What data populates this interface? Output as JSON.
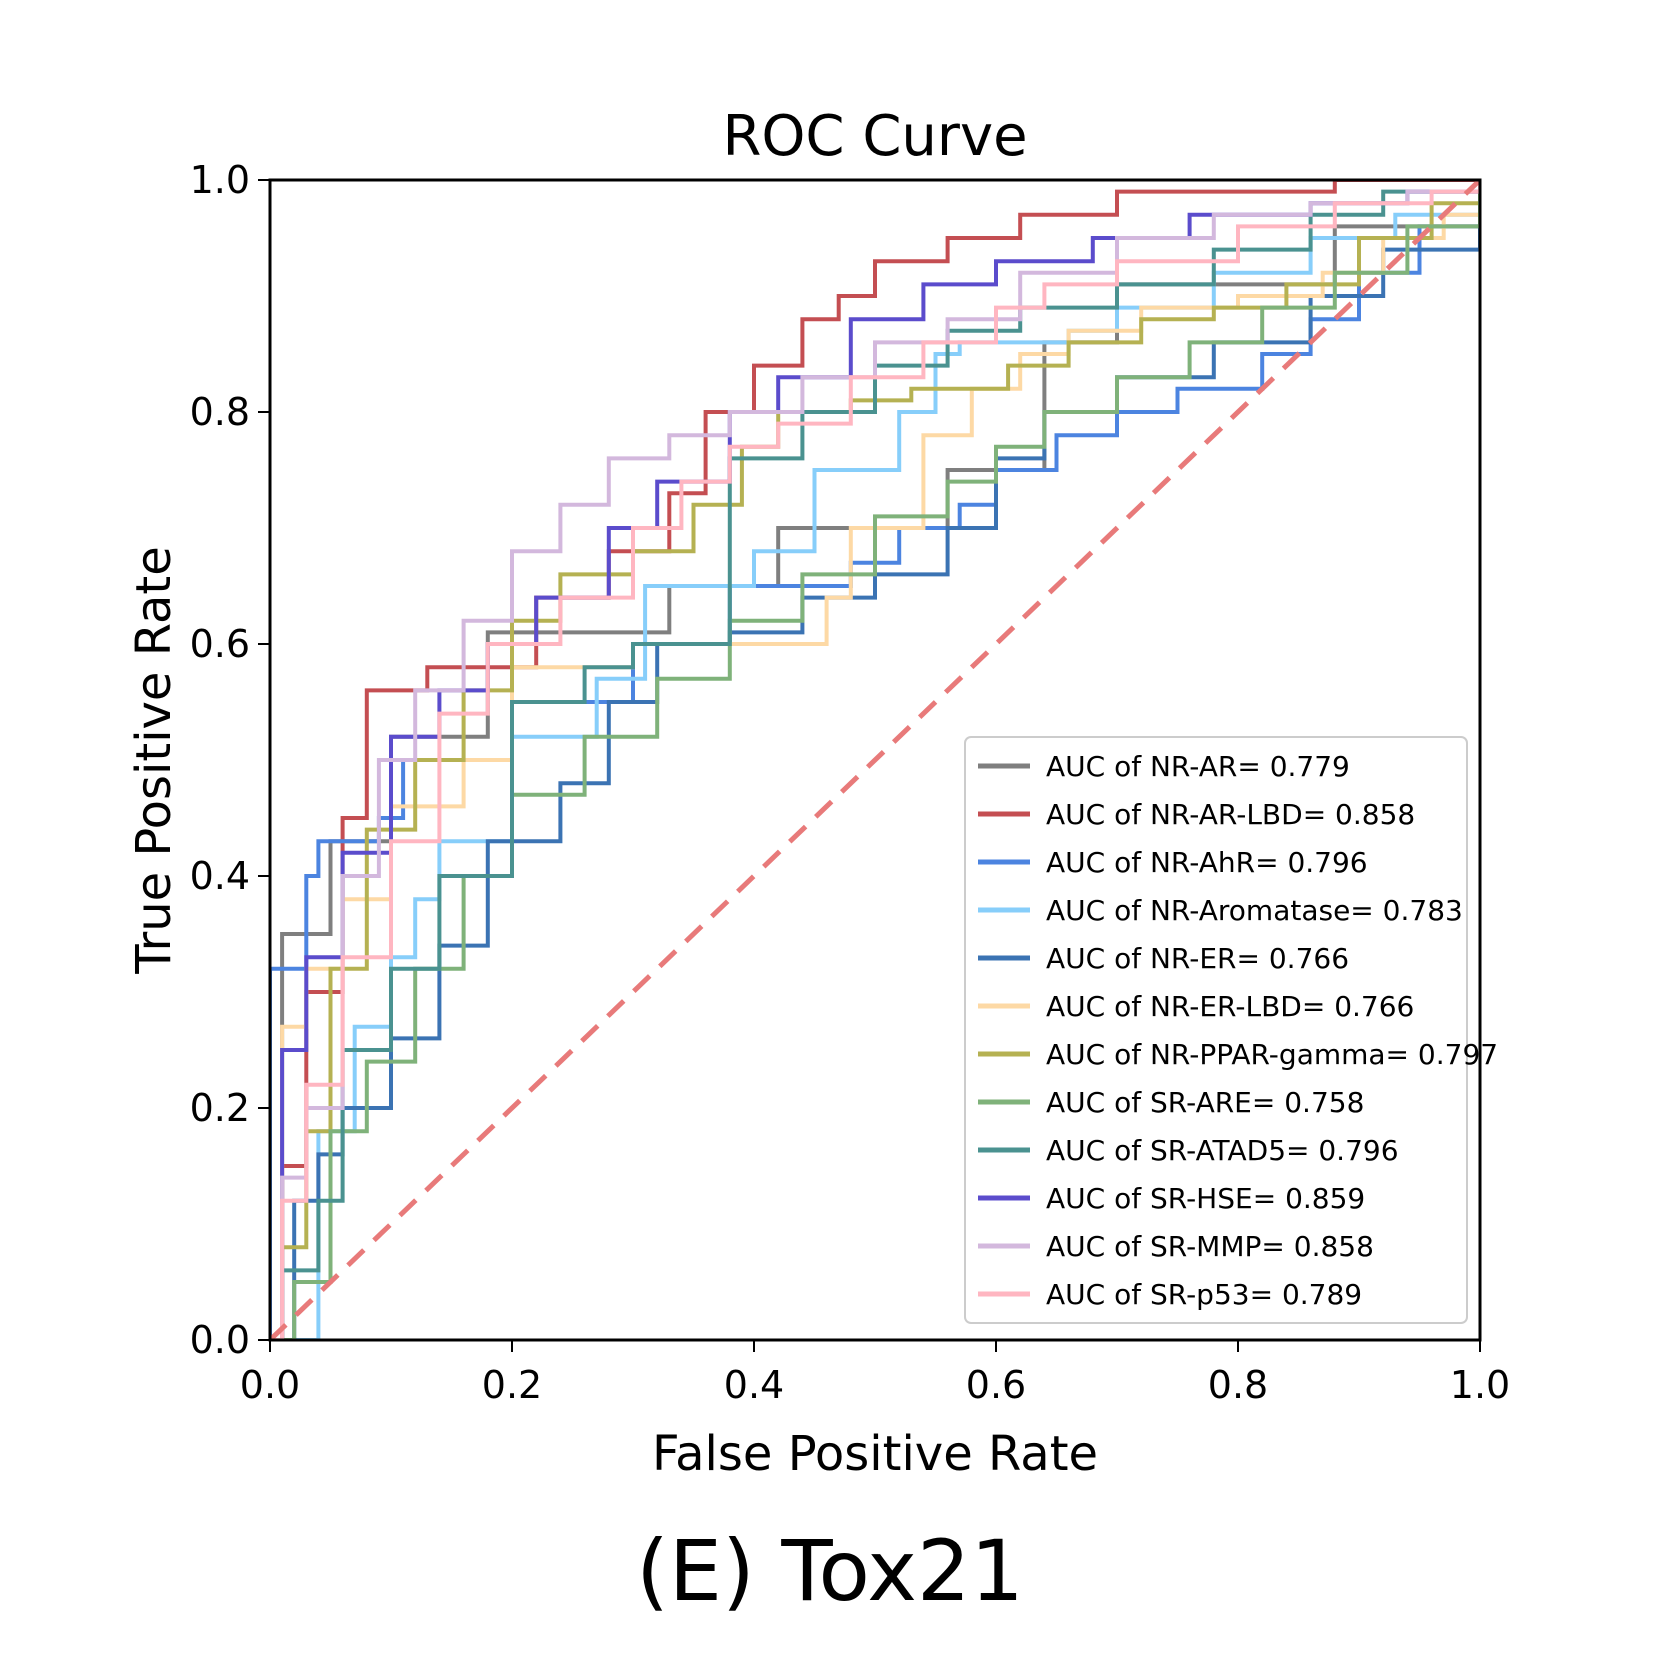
{
  "chart_data": {
    "type": "line",
    "title": "ROC Curve",
    "xlabel": "False Positive Rate",
    "ylabel": "True Positive Rate",
    "xlim": [
      0.0,
      1.0
    ],
    "ylim": [
      0.0,
      1.0
    ],
    "xticks": [
      "0.0",
      "0.2",
      "0.4",
      "0.6",
      "0.8",
      "1.0"
    ],
    "yticks": [
      "0.0",
      "0.2",
      "0.4",
      "0.6",
      "0.8",
      "1.0"
    ],
    "grid": false,
    "legend_position": "lower-right",
    "caption": "(E) Tox21",
    "diagonal": {
      "x": [
        0,
        1
      ],
      "y": [
        0,
        1
      ],
      "color": "#e87a7a",
      "style": "dashed"
    },
    "series": [
      {
        "name": "AUC of NR-AR= 0.779",
        "color": "#7f7f7f",
        "x": [
          0,
          0.01,
          0.01,
          0.05,
          0.05,
          0.1,
          0.1,
          0.18,
          0.18,
          0.33,
          0.33,
          0.42,
          0.42,
          0.56,
          0.56,
          0.64,
          0.64,
          0.7,
          0.7,
          0.88,
          0.88,
          0.97,
          0.97,
          1.0
        ],
        "y": [
          0,
          0.1,
          0.35,
          0.35,
          0.43,
          0.43,
          0.52,
          0.52,
          0.61,
          0.61,
          0.65,
          0.65,
          0.7,
          0.7,
          0.75,
          0.75,
          0.86,
          0.86,
          0.91,
          0.91,
          0.96,
          0.96,
          0.96,
          0.96
        ]
      },
      {
        "name": "AUC of NR-AR-LBD= 0.858",
        "color": "#c44e52",
        "x": [
          0,
          0.01,
          0.03,
          0.06,
          0.08,
          0.08,
          0.13,
          0.22,
          0.28,
          0.33,
          0.36,
          0.4,
          0.44,
          0.47,
          0.5,
          0.56,
          0.62,
          0.7,
          0.8,
          0.88,
          1.0
        ],
        "y": [
          0,
          0.15,
          0.3,
          0.45,
          0.52,
          0.56,
          0.58,
          0.64,
          0.68,
          0.73,
          0.8,
          0.84,
          0.88,
          0.9,
          0.93,
          0.95,
          0.97,
          0.99,
          0.99,
          1.0,
          1.0
        ],
        "shape": [
          0,
          0.7
        ]
      },
      {
        "name": "AUC of NR-AhR= 0.796",
        "color": "#4c84e0",
        "x": [
          0,
          0.0,
          0.02,
          0.03,
          0.04,
          0.06,
          0.09,
          0.11,
          0.11,
          0.2,
          0.2,
          0.3,
          0.3,
          0.38,
          0.38,
          0.48,
          0.52,
          0.57,
          0.6,
          0.65,
          0.7,
          0.75,
          0.82,
          0.86,
          0.9,
          0.95,
          1.0
        ],
        "y": [
          0,
          0.32,
          0.32,
          0.4,
          0.43,
          0.43,
          0.45,
          0.5,
          0.5,
          0.5,
          0.55,
          0.58,
          0.6,
          0.6,
          0.65,
          0.67,
          0.7,
          0.72,
          0.75,
          0.78,
          0.8,
          0.82,
          0.85,
          0.88,
          0.92,
          0.96,
          1.0
        ],
        "shape": [
          0,
          0.6
        ]
      },
      {
        "name": "AUC of NR-Aromatase= 0.783",
        "color": "#87cefa",
        "x": [
          0,
          0.04,
          0.07,
          0.1,
          0.12,
          0.14,
          0.2,
          0.27,
          0.31,
          0.4,
          0.45,
          0.52,
          0.55,
          0.57,
          0.6,
          0.66,
          0.7,
          0.78,
          0.86,
          0.93,
          1.0
        ],
        "y": [
          0,
          0.18,
          0.27,
          0.33,
          0.38,
          0.43,
          0.52,
          0.57,
          0.65,
          0.68,
          0.75,
          0.8,
          0.85,
          0.86,
          0.86,
          0.87,
          0.89,
          0.92,
          0.95,
          0.97,
          1.0
        ],
        "shape": [
          0,
          0.6
        ]
      },
      {
        "name": "AUC of NR-ER= 0.766",
        "color": "#3b73b3",
        "x": [
          0,
          0.02,
          0.04,
          0.06,
          0.1,
          0.14,
          0.18,
          0.24,
          0.28,
          0.32,
          0.38,
          0.44,
          0.5,
          0.56,
          0.6,
          0.64,
          0.7,
          0.78,
          0.86,
          0.92,
          1.0
        ],
        "y": [
          0,
          0.12,
          0.16,
          0.2,
          0.26,
          0.34,
          0.43,
          0.48,
          0.55,
          0.6,
          0.61,
          0.64,
          0.66,
          0.7,
          0.76,
          0.8,
          0.83,
          0.86,
          0.9,
          0.94,
          1.0
        ],
        "shape": [
          0,
          0.6
        ]
      },
      {
        "name": "AUC of NR-ER-LBD= 0.766",
        "color": "#fdd9a5",
        "x": [
          0,
          0.01,
          0.03,
          0.06,
          0.1,
          0.16,
          0.2,
          0.3,
          0.42,
          0.46,
          0.48,
          0.54,
          0.58,
          0.62,
          0.66,
          0.72,
          0.8,
          0.87,
          0.92,
          0.97,
          1.0
        ],
        "y": [
          0,
          0.27,
          0.32,
          0.38,
          0.46,
          0.5,
          0.58,
          0.6,
          0.6,
          0.64,
          0.7,
          0.78,
          0.82,
          0.85,
          0.87,
          0.89,
          0.9,
          0.92,
          0.95,
          0.97,
          1.0
        ],
        "shape": [
          0,
          0.6
        ]
      },
      {
        "name": "AUC of NR-PPAR-gamma= 0.797",
        "color": "#b5b152",
        "x": [
          0,
          0.01,
          0.03,
          0.05,
          0.08,
          0.12,
          0.16,
          0.2,
          0.24,
          0.3,
          0.35,
          0.39,
          0.42,
          0.48,
          0.53,
          0.56,
          0.61,
          0.66,
          0.72,
          0.78,
          0.84,
          0.9,
          0.96,
          1.0
        ],
        "y": [
          0,
          0.08,
          0.18,
          0.32,
          0.44,
          0.5,
          0.56,
          0.62,
          0.66,
          0.68,
          0.72,
          0.77,
          0.8,
          0.81,
          0.82,
          0.82,
          0.84,
          0.86,
          0.88,
          0.89,
          0.91,
          0.95,
          0.98,
          1.0
        ],
        "shape": [
          0,
          0.5
        ]
      },
      {
        "name": "AUC of SR-ARE= 0.758",
        "color": "#7fb27a",
        "x": [
          0,
          0.02,
          0.05,
          0.08,
          0.12,
          0.16,
          0.2,
          0.26,
          0.32,
          0.38,
          0.44,
          0.5,
          0.56,
          0.6,
          0.64,
          0.7,
          0.76,
          0.82,
          0.88,
          0.94,
          1.0
        ],
        "y": [
          0,
          0.05,
          0.18,
          0.24,
          0.32,
          0.4,
          0.47,
          0.52,
          0.57,
          0.62,
          0.66,
          0.71,
          0.74,
          0.77,
          0.8,
          0.83,
          0.86,
          0.89,
          0.92,
          0.96,
          1.0
        ],
        "shape": [
          0,
          0.55
        ]
      },
      {
        "name": "AUC of SR-ATAD5= 0.796",
        "color": "#4a9290",
        "x": [
          0,
          0.01,
          0.04,
          0.04,
          0.06,
          0.1,
          0.14,
          0.2,
          0.26,
          0.3,
          0.38,
          0.38,
          0.44,
          0.5,
          0.56,
          0.62,
          0.7,
          0.78,
          0.86,
          0.92,
          1.0
        ],
        "y": [
          0,
          0.06,
          0.06,
          0.12,
          0.25,
          0.32,
          0.4,
          0.55,
          0.58,
          0.6,
          0.7,
          0.76,
          0.8,
          0.84,
          0.87,
          0.89,
          0.91,
          0.94,
          0.97,
          0.99,
          1.0
        ],
        "shape": [
          0,
          0.6
        ]
      },
      {
        "name": "AUC of SR-HSE= 0.859",
        "color": "#5b4ccc",
        "x": [
          0,
          0.01,
          0.03,
          0.06,
          0.1,
          0.14,
          0.18,
          0.22,
          0.28,
          0.32,
          0.38,
          0.42,
          0.48,
          0.54,
          0.6,
          0.68,
          0.76,
          0.86,
          0.94,
          1.0
        ],
        "y": [
          0,
          0.25,
          0.33,
          0.42,
          0.52,
          0.56,
          0.6,
          0.64,
          0.7,
          0.74,
          0.8,
          0.83,
          0.88,
          0.91,
          0.93,
          0.95,
          0.97,
          0.98,
          0.99,
          1.0
        ],
        "shape": [
          0,
          0.6
        ]
      },
      {
        "name": "AUC of SR-MMP= 0.858",
        "color": "#d3b8dd",
        "x": [
          0,
          0.01,
          0.03,
          0.06,
          0.09,
          0.12,
          0.16,
          0.2,
          0.24,
          0.28,
          0.33,
          0.38,
          0.44,
          0.5,
          0.56,
          0.62,
          0.7,
          0.78,
          0.86,
          0.94,
          1.0
        ],
        "y": [
          0,
          0.14,
          0.2,
          0.4,
          0.5,
          0.56,
          0.62,
          0.68,
          0.72,
          0.76,
          0.78,
          0.8,
          0.83,
          0.86,
          0.88,
          0.92,
          0.95,
          0.97,
          0.98,
          0.99,
          1.0
        ],
        "shape": [
          0,
          0.6
        ]
      },
      {
        "name": "AUC of SR-p53= 0.789",
        "color": "#ffb6c1",
        "x": [
          0,
          0.01,
          0.03,
          0.06,
          0.1,
          0.14,
          0.18,
          0.24,
          0.3,
          0.34,
          0.38,
          0.42,
          0.48,
          0.54,
          0.6,
          0.64,
          0.7,
          0.8,
          0.88,
          0.96,
          1.0
        ],
        "y": [
          0,
          0.12,
          0.22,
          0.33,
          0.43,
          0.54,
          0.6,
          0.64,
          0.7,
          0.74,
          0.77,
          0.79,
          0.83,
          0.86,
          0.89,
          0.91,
          0.93,
          0.96,
          0.98,
          0.99,
          1.0
        ],
        "shape": [
          0,
          0.6
        ]
      }
    ]
  }
}
